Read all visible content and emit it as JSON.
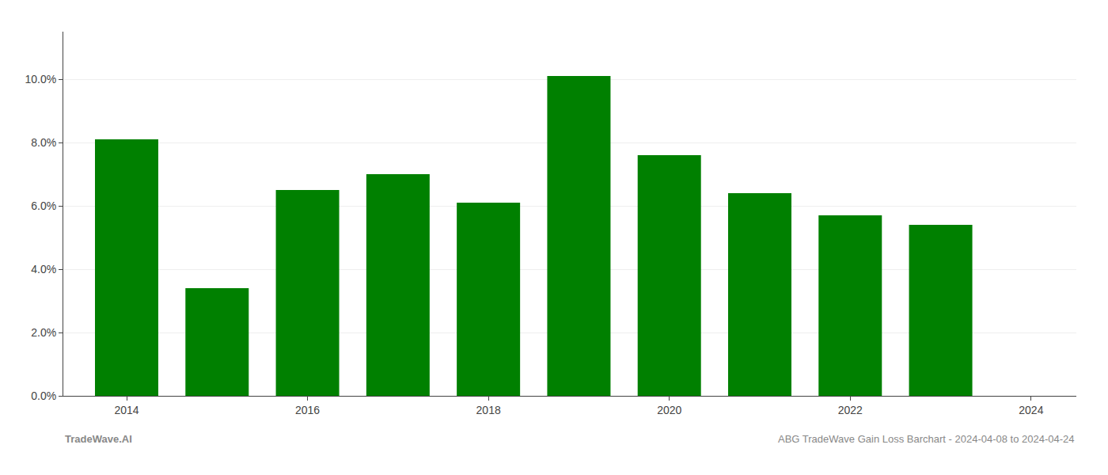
{
  "chart_data": {
    "type": "bar",
    "x": [
      2014,
      2015,
      2016,
      2017,
      2018,
      2019,
      2020,
      2021,
      2022,
      2023
    ],
    "values": [
      0.081,
      0.034,
      0.065,
      0.07,
      0.061,
      0.101,
      0.076,
      0.064,
      0.057,
      0.054
    ],
    "color": "#008000",
    "xlim": [
      2013.3,
      2024.5
    ],
    "xticks": [
      2014,
      2016,
      2018,
      2020,
      2022,
      2024
    ],
    "ylim": [
      0,
      0.115
    ],
    "yticks": [
      {
        "value": 0.0,
        "label": "0.0%"
      },
      {
        "value": 0.02,
        "label": "2.0%"
      },
      {
        "value": 0.04,
        "label": "4.0%"
      },
      {
        "value": 0.06,
        "label": "6.0%"
      },
      {
        "value": 0.08,
        "label": "8.0%"
      },
      {
        "value": 0.1,
        "label": "10.0%"
      }
    ],
    "grid": true,
    "annotations": [
      "TradeWave.AI",
      "ABG TradeWave Gain Loss Barchart - 2024-04-08 to 2024-04-24"
    ]
  }
}
